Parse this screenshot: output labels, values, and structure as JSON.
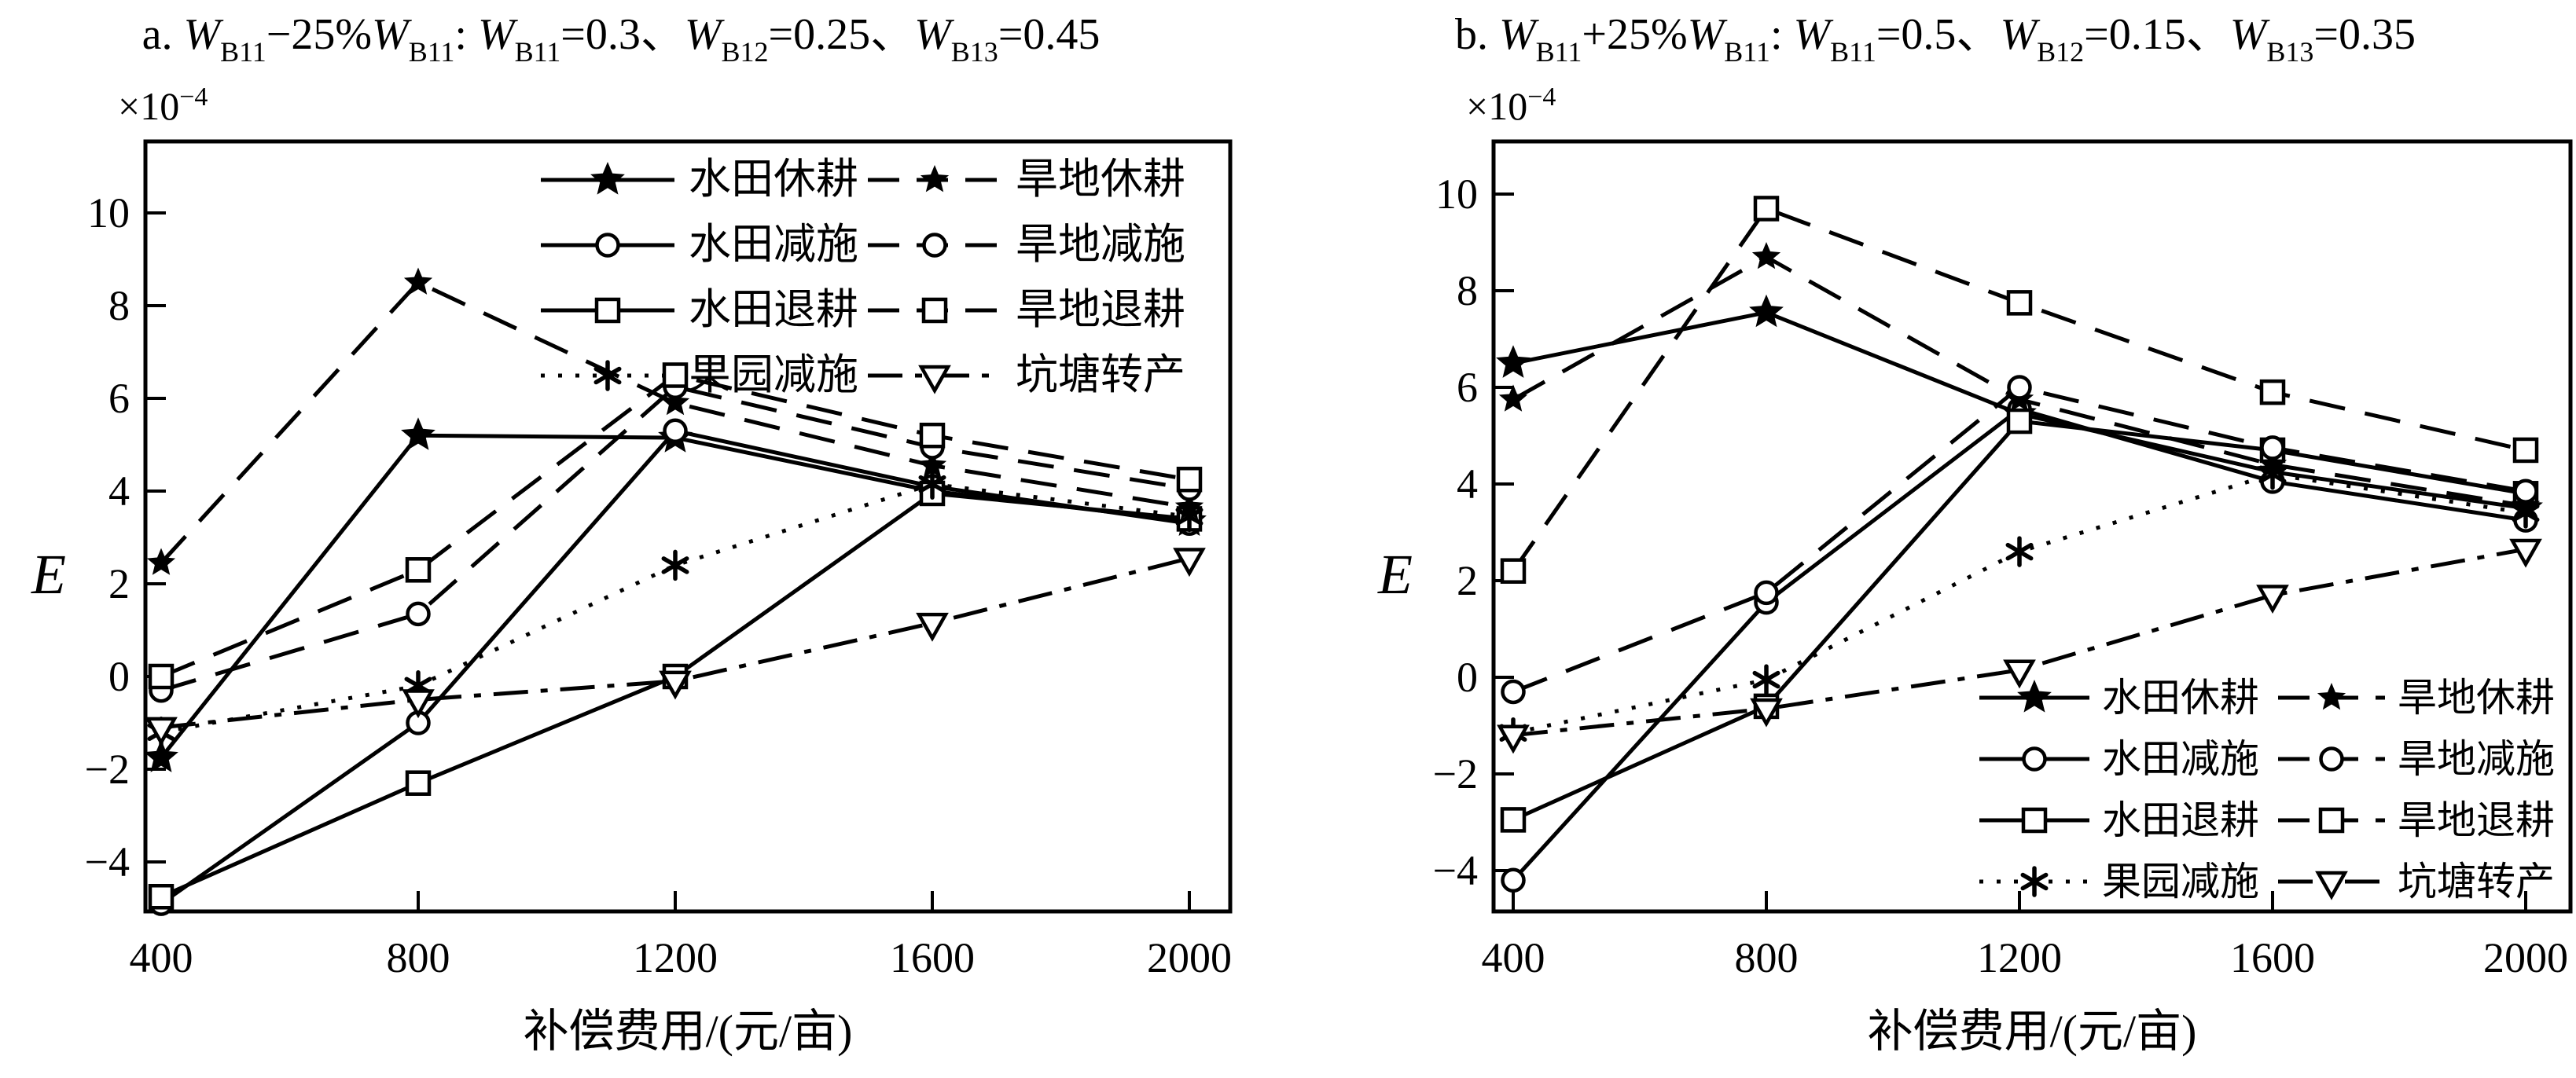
{
  "figure": {
    "background": "#ffffff",
    "foreground": "#000000"
  },
  "chart_data": [
    {
      "id": "a",
      "type": "line",
      "title_segments": [
        [
          "n",
          "a. "
        ],
        [
          "i",
          "W"
        ],
        [
          "sub",
          "B11"
        ],
        [
          "n",
          "−25%"
        ],
        [
          "i",
          "W"
        ],
        [
          "sub",
          "B11"
        ],
        [
          "n",
          ": "
        ],
        [
          "i",
          "W"
        ],
        [
          "sub",
          "B11"
        ],
        [
          "n",
          "=0.3、"
        ],
        [
          "i",
          "W"
        ],
        [
          "sub",
          "B12"
        ],
        [
          "n",
          "=0.25、"
        ],
        [
          "i",
          "W"
        ],
        [
          "sub",
          "B13"
        ],
        [
          "n",
          "=0.45"
        ]
      ],
      "scale_note_base": "×10",
      "scale_note_exp": "−4",
      "xlabel": "补偿费用/(元/亩)",
      "ylabel": "E",
      "x": [
        400,
        800,
        1200,
        1600,
        2000
      ],
      "x_ticks": [
        "400",
        "800",
        "1200",
        "1600",
        "2000"
      ],
      "y_ticks": [
        10,
        8,
        6,
        4,
        2,
        0,
        -2,
        -4
      ],
      "ylim": [
        -5.1,
        11.5
      ],
      "grid": false,
      "legend_position": "top-right",
      "series": [
        {
          "name": "水田休耕",
          "name_en": "paddy-fallow",
          "line": "solid",
          "marker": "star",
          "values": [
            -1.75,
            5.2,
            5.15,
            4.0,
            3.35
          ]
        },
        {
          "name": "水田减施",
          "name_en": "paddy-reduced-fertilizer",
          "line": "solid",
          "marker": "circle",
          "values": [
            -4.9,
            -1.0,
            5.3,
            4.1,
            3.3
          ]
        },
        {
          "name": "水田退耕",
          "name_en": "paddy-returned",
          "line": "solid",
          "marker": "square",
          "values": [
            -4.75,
            -2.3,
            0.0,
            3.95,
            3.4
          ]
        },
        {
          "name": "果园减施",
          "name_en": "orchard-reduced-fertilizer",
          "line": "dotted",
          "marker": "asterisk",
          "values": [
            -1.2,
            -0.2,
            2.4,
            4.15,
            3.45
          ]
        },
        {
          "name": "旱地休耕",
          "name_en": "dryland-fallow",
          "line": "dashed",
          "marker": "star-small",
          "values": [
            2.45,
            8.5,
            5.9,
            4.55,
            3.65
          ]
        },
        {
          "name": "旱地减施",
          "name_en": "dryland-reduced-fertilizer",
          "line": "dashed",
          "marker": "circle",
          "values": [
            -0.3,
            1.35,
            6.25,
            4.95,
            4.05
          ]
        },
        {
          "name": "旱地退耕",
          "name_en": "dryland-returned",
          "line": "dashed",
          "marker": "square",
          "values": [
            0.0,
            2.3,
            6.5,
            5.2,
            4.25
          ]
        },
        {
          "name": "坑塘转产",
          "name_en": "pond-conversion",
          "line": "dashdot",
          "marker": "triangle-down",
          "values": [
            -1.1,
            -0.5,
            -0.1,
            1.15,
            2.55
          ]
        }
      ]
    },
    {
      "id": "b",
      "type": "line",
      "title_segments": [
        [
          "n",
          "b. "
        ],
        [
          "i",
          "W"
        ],
        [
          "sub",
          "B11"
        ],
        [
          "n",
          "+25%"
        ],
        [
          "i",
          "W"
        ],
        [
          "sub",
          "B11"
        ],
        [
          "n",
          ": "
        ],
        [
          "i",
          "W"
        ],
        [
          "sub",
          "B11"
        ],
        [
          "n",
          "=0.5、"
        ],
        [
          "i",
          "W"
        ],
        [
          "sub",
          "B12"
        ],
        [
          "n",
          "=0.15、"
        ],
        [
          "i",
          "W"
        ],
        [
          "sub",
          "B13"
        ],
        [
          "n",
          "=0.35"
        ]
      ],
      "scale_note_base": "×10",
      "scale_note_exp": "−4",
      "xlabel": "补偿费用/(元/亩)",
      "ylabel": "E",
      "x": [
        400,
        800,
        1200,
        1600,
        2000
      ],
      "x_ticks": [
        "400",
        "800",
        "1200",
        "1600",
        "2000"
      ],
      "y_ticks": [
        10,
        8,
        6,
        4,
        2,
        0,
        -2,
        -4
      ],
      "ylim": [
        -4.9,
        11.1
      ],
      "grid": false,
      "legend_position": "bottom-right",
      "series": [
        {
          "name": "水田休耕",
          "name_en": "paddy-fallow",
          "line": "solid",
          "marker": "star",
          "values": [
            6.5,
            7.55,
            5.45,
            4.25,
            3.5
          ]
        },
        {
          "name": "水田减施",
          "name_en": "paddy-reduced-fertilizer",
          "line": "solid",
          "marker": "circle",
          "values": [
            -4.2,
            1.55,
            5.55,
            4.05,
            3.25
          ]
        },
        {
          "name": "水田退耕",
          "name_en": "paddy-returned",
          "line": "solid",
          "marker": "square",
          "values": [
            -2.95,
            -0.6,
            5.3,
            4.7,
            3.8
          ]
        },
        {
          "name": "果园减施",
          "name_en": "orchard-reduced-fertilizer",
          "line": "dotted",
          "marker": "asterisk",
          "values": [
            -1.15,
            -0.05,
            2.6,
            4.2,
            3.4
          ]
        },
        {
          "name": "旱地休耕",
          "name_en": "dryland-fallow",
          "line": "dashed",
          "marker": "star-small",
          "values": [
            5.75,
            8.7,
            5.75,
            4.4,
            3.55
          ]
        },
        {
          "name": "旱地减施",
          "name_en": "dryland-reduced-fertilizer",
          "line": "dashed",
          "marker": "circle",
          "values": [
            -0.3,
            1.75,
            6.0,
            4.75,
            3.85
          ]
        },
        {
          "name": "旱地退耕",
          "name_en": "dryland-returned",
          "line": "dashed",
          "marker": "square",
          "values": [
            2.2,
            9.7,
            7.75,
            5.9,
            4.7
          ]
        },
        {
          "name": "坑塘转产",
          "name_en": "pond-conversion",
          "line": "dashdot",
          "marker": "triangle-down",
          "values": [
            -1.2,
            -0.65,
            0.15,
            1.7,
            2.65
          ]
        }
      ]
    }
  ]
}
